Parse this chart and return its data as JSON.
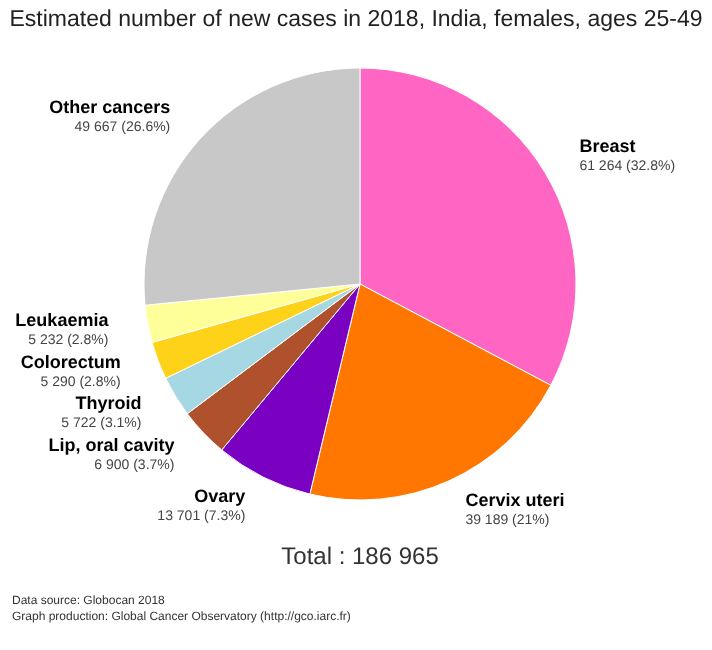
{
  "chart_data": {
    "type": "pie",
    "title": "Estimated number of new cases in 2018, India, females, ages 25-49",
    "categories": [
      "Breast",
      "Cervix uteri",
      "Ovary",
      "Lip, oral cavity",
      "Thyroid",
      "Colorectum",
      "Leukaemia",
      "Other cancers"
    ],
    "values": [
      61264,
      39189,
      13701,
      6900,
      5722,
      5290,
      5232,
      49667
    ],
    "value_labels": [
      "61 264 (32.8%)",
      "39 189 (21%)",
      "13 701 (7.3%)",
      "6 900 (3.7%)",
      "5 722 (3.1%)",
      "5 290 (2.8%)",
      "5 232 (2.8%)",
      "49 667 (26.6%)"
    ],
    "colors": [
      "#ff66c4",
      "#ff7700",
      "#7a00c2",
      "#b0512e",
      "#a6d8e3",
      "#ffd21a",
      "#ffff99",
      "#c8c8c8"
    ],
    "annotations": [
      "Total : 186 965",
      "Data source: Globocan 2018",
      "Graph production: Global Cancer Observatory (http://gco.iarc.fr)"
    ]
  }
}
